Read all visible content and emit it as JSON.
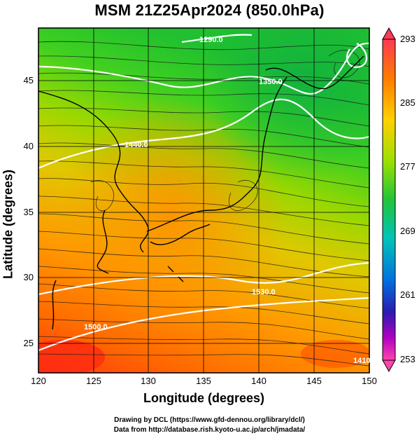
{
  "title": "MSM 21Z25Apr2024 (850.0hPa)",
  "xlabel": "Longitude (degrees)",
  "ylabel": "Latitude  (degrees)",
  "x_ticks": [
    "120",
    "125",
    "130",
    "135",
    "140",
    "145",
    "150"
  ],
  "y_ticks": [
    "25",
    "30",
    "35",
    "40",
    "45"
  ],
  "colorbar": {
    "ticks": [
      "293",
      "285",
      "277",
      "269",
      "261",
      "253"
    ],
    "range": [
      253,
      293
    ],
    "colors": [
      "#ff3a55",
      "#ff7a00",
      "#ffd000",
      "#9be000",
      "#22c43a",
      "#00c4b8",
      "#0070e0",
      "#2a1ab0",
      "#b000c0",
      "#ff44b0"
    ]
  },
  "contour_labels": [
    "1290.0",
    "1440.0",
    "1350.0",
    "1530.0",
    "1500.0",
    "1410.0"
  ],
  "credits": {
    "line1": "Drawing by DCL (https://www.gfd-dennou.org/library/dcl/)",
    "line2": "Data from http://database.rish.kyoto-u.ac.jp/arch/jmadata/"
  },
  "map_extent": {
    "lon": [
      120,
      150
    ],
    "lat": [
      22.5,
      47.8
    ]
  }
}
